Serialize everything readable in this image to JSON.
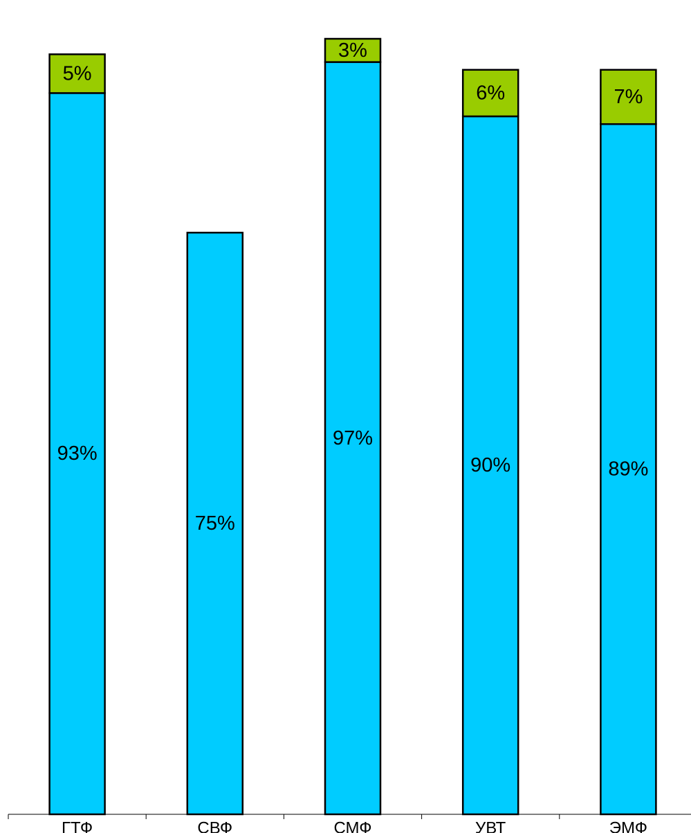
{
  "chart_data": {
    "type": "bar",
    "stacked": true,
    "categories": [
      "ГТФ",
      "СВФ",
      "СМФ",
      "УВТ",
      "ЭМФ"
    ],
    "series": [
      {
        "values": [
          93,
          75,
          97,
          90,
          89
        ],
        "labels": [
          "93%",
          "75%",
          "97%",
          "90%",
          "89%"
        ],
        "color": "#00CCFF"
      },
      {
        "values": [
          5,
          0,
          3,
          6,
          7
        ],
        "labels": [
          "5%",
          "",
          "3%",
          "6%",
          "7%"
        ],
        "color": "#99CC00"
      }
    ],
    "ylim": [
      0,
      100
    ],
    "grid": false,
    "legend": "none",
    "value_axis_visible": false
  }
}
